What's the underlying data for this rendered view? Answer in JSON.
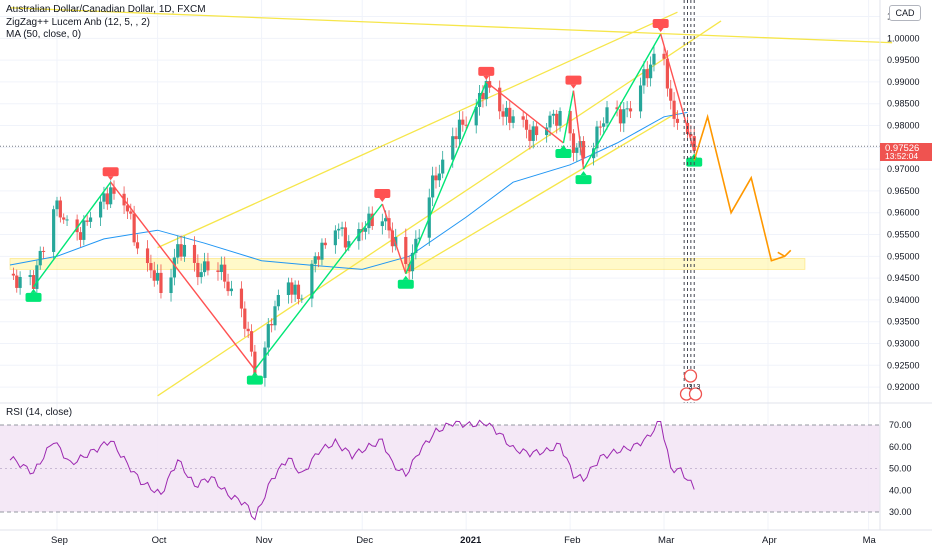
{
  "legend": {
    "line1": "Australian Dollar/Canadian Dollar, 1D, FXCM",
    "line2": "ZigZag++ Lucem Anb (12, 5, , 2)",
    "line3": "MA (50, close, 0)"
  },
  "currency": "CAD",
  "price_badge": {
    "price": "0.97526",
    "countdown": "13:52:04"
  },
  "rsi_label": "RSI (14, close)",
  "colors": {
    "up": "#26a69a",
    "down": "#ef5350",
    "ma": "#2196f3",
    "channel": "#ffeb3b",
    "projection": "#ff9800",
    "rsi": "#9c27b0",
    "zz_up": "#00e676",
    "zz_down": "#ff5252"
  },
  "chart_data": [
    {
      "type": "candlestick",
      "title": "Australian Dollar/Canadian Dollar, 1D, FXCM",
      "x_ticks": [
        "Sep",
        "Oct",
        "Nov",
        "Dec",
        "2021",
        "Feb",
        "Mar",
        "Apr",
        "Ma"
      ],
      "y_ticks": [
        "0.92000",
        "0.92500",
        "0.93000",
        "0.93500",
        "0.94000",
        "0.94500",
        "0.95000",
        "0.95500",
        "0.96000",
        "0.96500",
        "0.97000",
        "0.97500",
        "0.98000",
        "0.98500",
        "0.99000",
        "0.99500",
        "1.00000",
        "1.00500"
      ],
      "ylim": [
        0.9175,
        1.0065
      ],
      "last_price": 0.97526,
      "close_path": [
        {
          "d": "2020-08-18",
          "y": 0.946
        },
        {
          "d": "2020-08-25",
          "y": 0.943
        },
        {
          "d": "2020-08-31",
          "y": 0.963
        },
        {
          "d": "2020-09-05",
          "y": 0.954
        },
        {
          "d": "2020-09-14",
          "y": 0.962
        },
        {
          "d": "2020-09-17",
          "y": 0.966
        },
        {
          "d": "2020-09-22",
          "y": 0.96
        },
        {
          "d": "2020-09-26",
          "y": 0.95
        },
        {
          "d": "2020-10-02",
          "y": 0.942
        },
        {
          "d": "2020-10-07",
          "y": 0.952
        },
        {
          "d": "2020-10-12",
          "y": 0.947
        },
        {
          "d": "2020-10-17",
          "y": 0.949
        },
        {
          "d": "2020-10-22",
          "y": 0.944
        },
        {
          "d": "2020-10-27",
          "y": 0.934
        },
        {
          "d": "2020-10-30",
          "y": 0.924
        },
        {
          "d": "2020-11-04",
          "y": 0.935
        },
        {
          "d": "2020-11-09",
          "y": 0.945
        },
        {
          "d": "2020-11-13",
          "y": 0.94
        },
        {
          "d": "2020-11-18",
          "y": 0.952
        },
        {
          "d": "2020-11-23",
          "y": 0.956
        },
        {
          "d": "2020-11-28",
          "y": 0.953
        },
        {
          "d": "2020-12-03",
          "y": 0.957
        },
        {
          "d": "2020-12-07",
          "y": 0.961
        },
        {
          "d": "2020-12-10",
          "y": 0.953
        },
        {
          "d": "2020-12-14",
          "y": 0.947
        },
        {
          "d": "2020-12-18",
          "y": 0.956
        },
        {
          "d": "2020-12-23",
          "y": 0.969
        },
        {
          "d": "2020-12-28",
          "y": 0.976
        },
        {
          "d": "2021-01-02",
          "y": 0.983
        },
        {
          "d": "2021-01-07",
          "y": 0.988
        },
        {
          "d": "2021-01-11",
          "y": 0.985
        },
        {
          "d": "2021-01-15",
          "y": 0.981
        },
        {
          "d": "2021-01-20",
          "y": 0.979
        },
        {
          "d": "2021-01-25",
          "y": 0.98
        },
        {
          "d": "2021-01-29",
          "y": 0.983
        },
        {
          "d": "2021-02-02",
          "y": 0.974
        },
        {
          "d": "2021-02-05",
          "y": 0.974
        },
        {
          "d": "2021-02-10",
          "y": 0.98
        },
        {
          "d": "2021-02-15",
          "y": 0.983
        },
        {
          "d": "2021-02-20",
          "y": 0.985
        },
        {
          "d": "2021-02-24",
          "y": 0.993
        },
        {
          "d": "2021-02-28",
          "y": 1.0
        },
        {
          "d": "2021-03-03",
          "y": 0.983
        },
        {
          "d": "2021-03-06",
          "y": 0.981
        },
        {
          "d": "2021-03-10",
          "y": 0.975
        }
      ],
      "ma_50": [
        {
          "d": "2020-08-18",
          "y": 0.948
        },
        {
          "d": "2020-09-01",
          "y": 0.95
        },
        {
          "d": "2020-09-15",
          "y": 0.954
        },
        {
          "d": "2020-10-01",
          "y": 0.956
        },
        {
          "d": "2020-10-15",
          "y": 0.953
        },
        {
          "d": "2020-11-01",
          "y": 0.949
        },
        {
          "d": "2020-11-15",
          "y": 0.948
        },
        {
          "d": "2020-12-01",
          "y": 0.947
        },
        {
          "d": "2020-12-15",
          "y": 0.95
        },
        {
          "d": "2021-01-01",
          "y": 0.959
        },
        {
          "d": "2021-01-15",
          "y": 0.967
        },
        {
          "d": "2021-02-01",
          "y": 0.971
        },
        {
          "d": "2021-02-15",
          "y": 0.976
        },
        {
          "d": "2021-03-01",
          "y": 0.982
        },
        {
          "d": "2021-03-08",
          "y": 0.983
        }
      ],
      "zigzag": [
        {
          "d": "2020-08-25",
          "y": 0.943,
          "kind": "low"
        },
        {
          "d": "2020-09-17",
          "y": 0.967,
          "kind": "high"
        },
        {
          "d": "2020-10-30",
          "y": 0.924,
          "kind": "low"
        },
        {
          "d": "2020-12-07",
          "y": 0.962,
          "kind": "high"
        },
        {
          "d": "2020-12-14",
          "y": 0.946,
          "kind": "low"
        },
        {
          "d": "2021-01-07",
          "y": 0.99,
          "kind": "high"
        },
        {
          "d": "2021-01-30",
          "y": 0.976,
          "kind": "low"
        },
        {
          "d": "2021-02-02",
          "y": 0.988,
          "kind": "high"
        },
        {
          "d": "2021-02-05",
          "y": 0.97,
          "kind": "low"
        },
        {
          "d": "2021-02-28",
          "y": 1.001,
          "kind": "high"
        },
        {
          "d": "2021-03-10",
          "y": 0.974,
          "kind": "low"
        }
      ],
      "projection": [
        {
          "d": "2021-03-10",
          "y": 0.972
        },
        {
          "d": "2021-03-14",
          "y": 0.982
        },
        {
          "d": "2021-03-21",
          "y": 0.96
        },
        {
          "d": "2021-03-27",
          "y": 0.968
        },
        {
          "d": "2021-04-02",
          "y": 0.949
        },
        {
          "d": "2021-04-06",
          "y": 0.95
        }
      ],
      "channel_lines": [
        {
          "p1": {
            "d": "2020-10-01",
            "y": 0.952
          },
          "p2": {
            "d": "2021-03-05",
            "y": 1.006
          }
        },
        {
          "p1": {
            "d": "2020-10-01",
            "y": 0.918
          },
          "p2": {
            "d": "2021-03-18",
            "y": 1.004
          }
        },
        {
          "p1": {
            "d": "2020-12-14",
            "y": 0.946
          },
          "p2": {
            "d": "2021-03-05",
            "y": 0.983
          }
        },
        {
          "p1": {
            "d": "2020-08-18",
            "y": 1.007
          },
          "p2": {
            "d": "2021-05-08",
            "y": 0.999
          }
        }
      ],
      "support_zone": {
        "from": 0.947,
        "to": 0.9495,
        "d_from": "2020-08-18",
        "d_to": "2021-04-12"
      },
      "event_lines": [
        "2021-03-07",
        "2021-03-08",
        "2021-03-09",
        "2021-03-10"
      ],
      "event_markers": [
        {
          "label": "3",
          "d": "2021-03-09"
        },
        {
          "label": "3",
          "d": "2021-03-10"
        }
      ]
    },
    {
      "type": "line",
      "title": "RSI (14, close)",
      "y_ticks": [
        "30.00",
        "40.00",
        "50.00",
        "60.00",
        "70.00"
      ],
      "ylim": [
        26,
        76
      ],
      "band": [
        30,
        70
      ],
      "values": [
        {
          "d": "2020-08-18",
          "y": 55
        },
        {
          "d": "2020-08-25",
          "y": 48
        },
        {
          "d": "2020-08-31",
          "y": 63
        },
        {
          "d": "2020-09-05",
          "y": 52
        },
        {
          "d": "2020-09-14",
          "y": 60
        },
        {
          "d": "2020-09-17",
          "y": 63
        },
        {
          "d": "2020-09-22",
          "y": 52
        },
        {
          "d": "2020-09-26",
          "y": 44
        },
        {
          "d": "2020-10-02",
          "y": 38
        },
        {
          "d": "2020-10-07",
          "y": 54
        },
        {
          "d": "2020-10-12",
          "y": 42
        },
        {
          "d": "2020-10-17",
          "y": 46
        },
        {
          "d": "2020-10-22",
          "y": 38
        },
        {
          "d": "2020-10-27",
          "y": 34
        },
        {
          "d": "2020-10-30",
          "y": 27
        },
        {
          "d": "2020-11-04",
          "y": 45
        },
        {
          "d": "2020-11-09",
          "y": 55
        },
        {
          "d": "2020-11-13",
          "y": 47
        },
        {
          "d": "2020-11-18",
          "y": 58
        },
        {
          "d": "2020-11-23",
          "y": 62
        },
        {
          "d": "2020-11-28",
          "y": 56
        },
        {
          "d": "2020-12-03",
          "y": 60
        },
        {
          "d": "2020-12-07",
          "y": 63
        },
        {
          "d": "2020-12-10",
          "y": 52
        },
        {
          "d": "2020-12-14",
          "y": 47
        },
        {
          "d": "2020-12-18",
          "y": 58
        },
        {
          "d": "2020-12-23",
          "y": 67
        },
        {
          "d": "2020-12-28",
          "y": 71
        },
        {
          "d": "2021-01-02",
          "y": 70
        },
        {
          "d": "2021-01-07",
          "y": 71
        },
        {
          "d": "2021-01-11",
          "y": 66
        },
        {
          "d": "2021-01-15",
          "y": 59
        },
        {
          "d": "2021-01-20",
          "y": 57
        },
        {
          "d": "2021-01-25",
          "y": 58
        },
        {
          "d": "2021-01-29",
          "y": 61
        },
        {
          "d": "2021-02-02",
          "y": 47
        },
        {
          "d": "2021-02-05",
          "y": 45
        },
        {
          "d": "2021-02-10",
          "y": 55
        },
        {
          "d": "2021-02-15",
          "y": 58
        },
        {
          "d": "2021-02-20",
          "y": 60
        },
        {
          "d": "2021-02-24",
          "y": 64
        },
        {
          "d": "2021-02-28",
          "y": 72
        },
        {
          "d": "2021-03-03",
          "y": 50
        },
        {
          "d": "2021-03-06",
          "y": 49
        },
        {
          "d": "2021-03-10",
          "y": 41
        }
      ]
    }
  ]
}
